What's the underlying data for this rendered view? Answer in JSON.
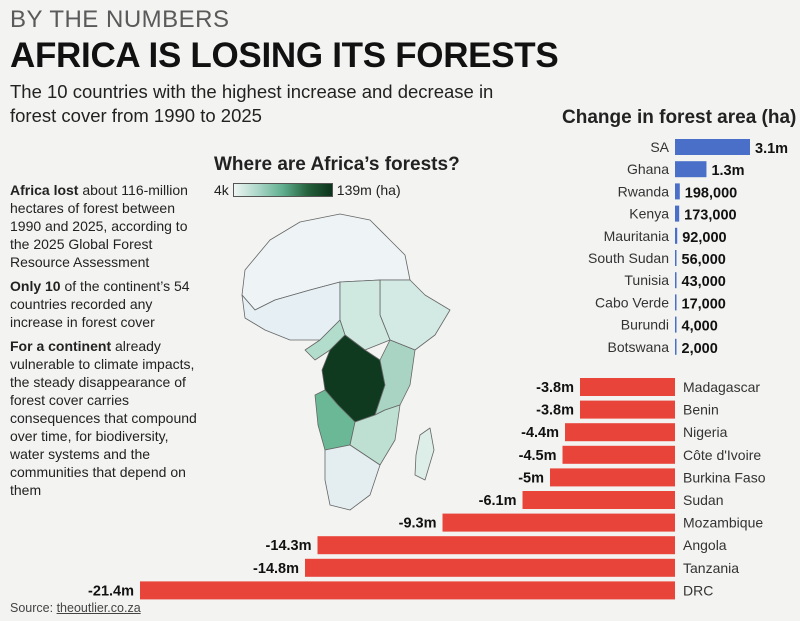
{
  "header": {
    "kicker": "BY THE NUMBERS",
    "title": "AFRICA IS LOSING ITS FORESTS",
    "subtitle": "The 10 countries with the highest increase and decrease in forest cover from 1990 to 2025"
  },
  "map": {
    "title": "Where are Africa’s forests?",
    "legend_min": "4k",
    "legend_max": "139m (ha)"
  },
  "side_text": {
    "p1_bold": "Africa lost",
    "p1_rest": " about 116-million hectares of forest between 1990 and 2025, according to the 2025 Global Forest Resource Assessment",
    "p2_bold": "Only 10",
    "p2_rest": " of the continent’s 54 countries recorded any increase in forest cover",
    "p3_bold": "For a continent",
    "p3_rest": " already vulnerable to climate impacts, the steady disappearance of forest cover carries consequences that compound over time, for biodiversity, water systems and the communities that depend on them"
  },
  "source": {
    "label": "Source: ",
    "link": "theoutlier.co.za"
  },
  "colors": {
    "increase": "#4a6fc9",
    "decrease": "#e8443a"
  },
  "chart_data": {
    "type": "bar",
    "title": "Change in forest area (ha)",
    "increases": [
      {
        "country": "SA",
        "value": 3100000,
        "label": "3.1m"
      },
      {
        "country": "Ghana",
        "value": 1300000,
        "label": "1.3m"
      },
      {
        "country": "Rwanda",
        "value": 198000,
        "label": "198,000"
      },
      {
        "country": "Kenya",
        "value": 173000,
        "label": "173,000"
      },
      {
        "country": "Mauritania",
        "value": 92000,
        "label": "92,000"
      },
      {
        "country": "South Sudan",
        "value": 56000,
        "label": "56,000"
      },
      {
        "country": "Tunisia",
        "value": 43000,
        "label": "43,000"
      },
      {
        "country": "Cabo Verde",
        "value": 17000,
        "label": "17,000"
      },
      {
        "country": "Burundi",
        "value": 4000,
        "label": "4,000"
      },
      {
        "country": "Botswana",
        "value": 2000,
        "label": "2,000"
      }
    ],
    "decreases": [
      {
        "country": "Madagascar",
        "value": -3800000,
        "label": "-3.8m"
      },
      {
        "country": "Benin",
        "value": -3800000,
        "label": "-3.8m"
      },
      {
        "country": "Nigeria",
        "value": -4400000,
        "label": "-4.4m"
      },
      {
        "country": "Côte d'Ivoire",
        "value": -4500000,
        "label": "-4.5m"
      },
      {
        "country": "Burkina Faso",
        "value": -5000000,
        "label": "-5m"
      },
      {
        "country": "Sudan",
        "value": -6100000,
        "label": "-6.1m"
      },
      {
        "country": "Mozambique",
        "value": -9300000,
        "label": "-9.3m"
      },
      {
        "country": "Angola",
        "value": -14300000,
        "label": "-14.3m"
      },
      {
        "country": "Tanzania",
        "value": -14800000,
        "label": "-14.8m"
      },
      {
        "country": "DRC",
        "value": -21400000,
        "label": "-21.4m"
      }
    ]
  }
}
